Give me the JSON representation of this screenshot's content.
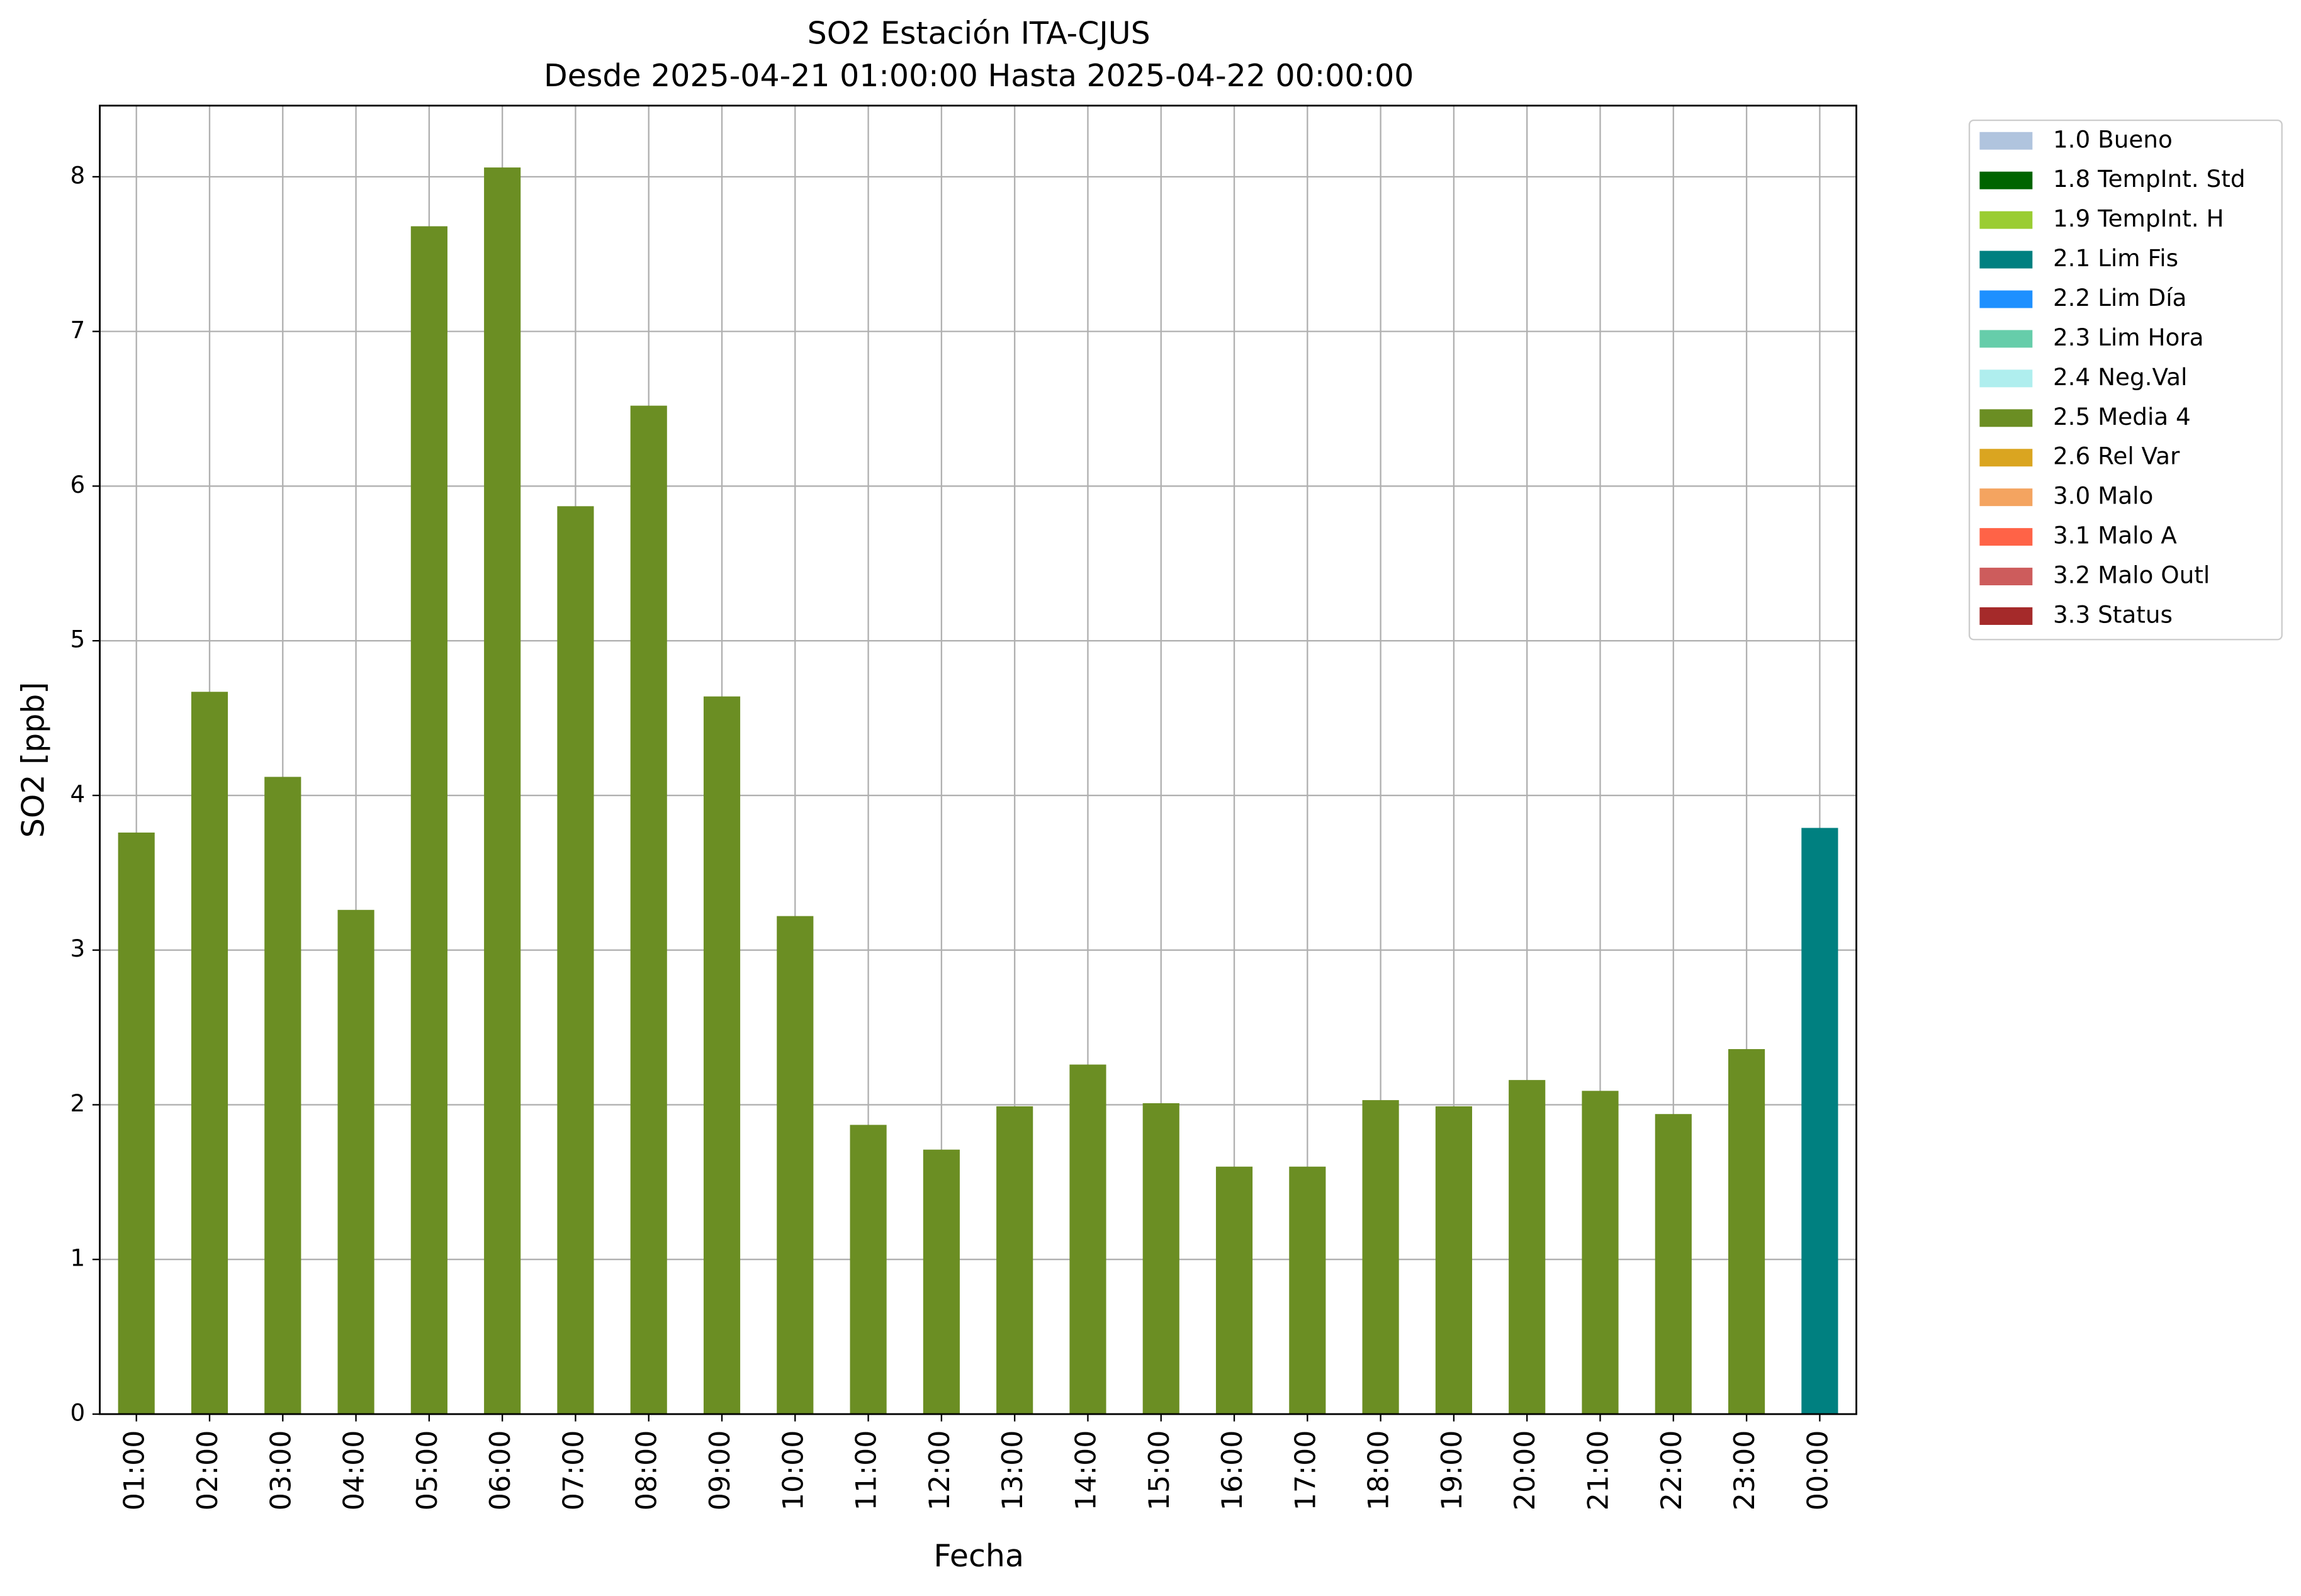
{
  "chart_data": {
    "type": "bar",
    "title": "SO2 Estación ITA-CJUS",
    "subtitle": "Desde 2025-04-21 01:00:00 Hasta 2025-04-22 00:00:00",
    "x_label": "Fecha",
    "y_label": "SO2 [ppb]",
    "categories": [
      "01:00",
      "02:00",
      "03:00",
      "04:00",
      "05:00",
      "06:00",
      "07:00",
      "08:00",
      "09:00",
      "10:00",
      "11:00",
      "12:00",
      "13:00",
      "14:00",
      "15:00",
      "16:00",
      "17:00",
      "18:00",
      "19:00",
      "20:00",
      "21:00",
      "22:00",
      "23:00",
      "00:00"
    ],
    "series": [
      {
        "name": "1.0 Bueno",
        "color": "#b0c4de",
        "values": [
          null,
          null,
          null,
          null,
          null,
          null,
          null,
          null,
          null,
          null,
          null,
          null,
          null,
          null,
          null,
          null,
          null,
          null,
          null,
          null,
          null,
          null,
          null,
          null
        ]
      },
      {
        "name": "1.8 TempInt. Std",
        "color": "#006400",
        "values": [
          null,
          null,
          null,
          null,
          null,
          null,
          null,
          null,
          null,
          null,
          null,
          null,
          null,
          null,
          null,
          null,
          null,
          null,
          null,
          null,
          null,
          null,
          null,
          null
        ]
      },
      {
        "name": "1.9 TempInt. H",
        "color": "#9acd32",
        "values": [
          null,
          null,
          null,
          null,
          null,
          null,
          null,
          null,
          null,
          null,
          null,
          null,
          null,
          null,
          null,
          null,
          null,
          null,
          null,
          null,
          null,
          null,
          null,
          null
        ]
      },
      {
        "name": "2.1 Lim Fis",
        "color": "#008080",
        "values": [
          null,
          null,
          null,
          null,
          null,
          null,
          null,
          null,
          null,
          null,
          null,
          null,
          null,
          null,
          null,
          null,
          null,
          null,
          null,
          null,
          null,
          null,
          null,
          3.79
        ]
      },
      {
        "name": "2.2 Lim Día",
        "color": "#1e90ff",
        "values": [
          null,
          null,
          null,
          null,
          null,
          null,
          null,
          null,
          null,
          null,
          null,
          null,
          null,
          null,
          null,
          null,
          null,
          null,
          null,
          null,
          null,
          null,
          null,
          null
        ]
      },
      {
        "name": "2.3 Lim Hora",
        "color": "#66cdaa",
        "values": [
          null,
          null,
          null,
          null,
          null,
          null,
          null,
          null,
          null,
          null,
          null,
          null,
          null,
          null,
          null,
          null,
          null,
          null,
          null,
          null,
          null,
          null,
          null,
          null
        ]
      },
      {
        "name": "2.4 Neg.Val",
        "color": "#afeeee",
        "values": [
          null,
          null,
          null,
          null,
          null,
          null,
          null,
          null,
          null,
          null,
          null,
          null,
          null,
          null,
          null,
          null,
          null,
          null,
          null,
          null,
          null,
          null,
          null,
          null
        ]
      },
      {
        "name": "2.5 Media 4",
        "color": "#6b8e23",
        "values": [
          3.76,
          4.67,
          4.12,
          3.26,
          7.68,
          8.06,
          5.87,
          6.52,
          4.64,
          3.22,
          1.87,
          1.71,
          1.99,
          2.26,
          2.01,
          1.6,
          1.6,
          2.03,
          1.99,
          2.16,
          2.09,
          1.94,
          2.36,
          null
        ]
      },
      {
        "name": "2.6 Rel Var",
        "color": "#daa520",
        "values": [
          null,
          null,
          null,
          null,
          null,
          null,
          null,
          null,
          null,
          null,
          null,
          null,
          null,
          null,
          null,
          null,
          null,
          null,
          null,
          null,
          null,
          null,
          null,
          null
        ]
      },
      {
        "name": "3.0 Malo",
        "color": "#f4a460",
        "values": [
          null,
          null,
          null,
          null,
          null,
          null,
          null,
          null,
          null,
          null,
          null,
          null,
          null,
          null,
          null,
          null,
          null,
          null,
          null,
          null,
          null,
          null,
          null,
          null
        ]
      },
      {
        "name": "3.1 Malo A",
        "color": "#ff6347",
        "values": [
          null,
          null,
          null,
          null,
          null,
          null,
          null,
          null,
          null,
          null,
          null,
          null,
          null,
          null,
          null,
          null,
          null,
          null,
          null,
          null,
          null,
          null,
          null,
          null
        ]
      },
      {
        "name": "3.2 Malo Outl",
        "color": "#cd5c5c",
        "values": [
          null,
          null,
          null,
          null,
          null,
          null,
          null,
          null,
          null,
          null,
          null,
          null,
          null,
          null,
          null,
          null,
          null,
          null,
          null,
          null,
          null,
          null,
          null,
          null
        ]
      },
      {
        "name": "3.3 Status",
        "color": "#a52a2a",
        "values": [
          null,
          null,
          null,
          null,
          null,
          null,
          null,
          null,
          null,
          null,
          null,
          null,
          null,
          null,
          null,
          null,
          null,
          null,
          null,
          null,
          null,
          null,
          null,
          null
        ]
      }
    ],
    "ylim": [
      0,
      8.46
    ],
    "yticks": [
      0,
      1,
      2,
      3,
      4,
      5,
      6,
      7,
      8
    ],
    "grid": true,
    "legend": "outside upper right"
  }
}
